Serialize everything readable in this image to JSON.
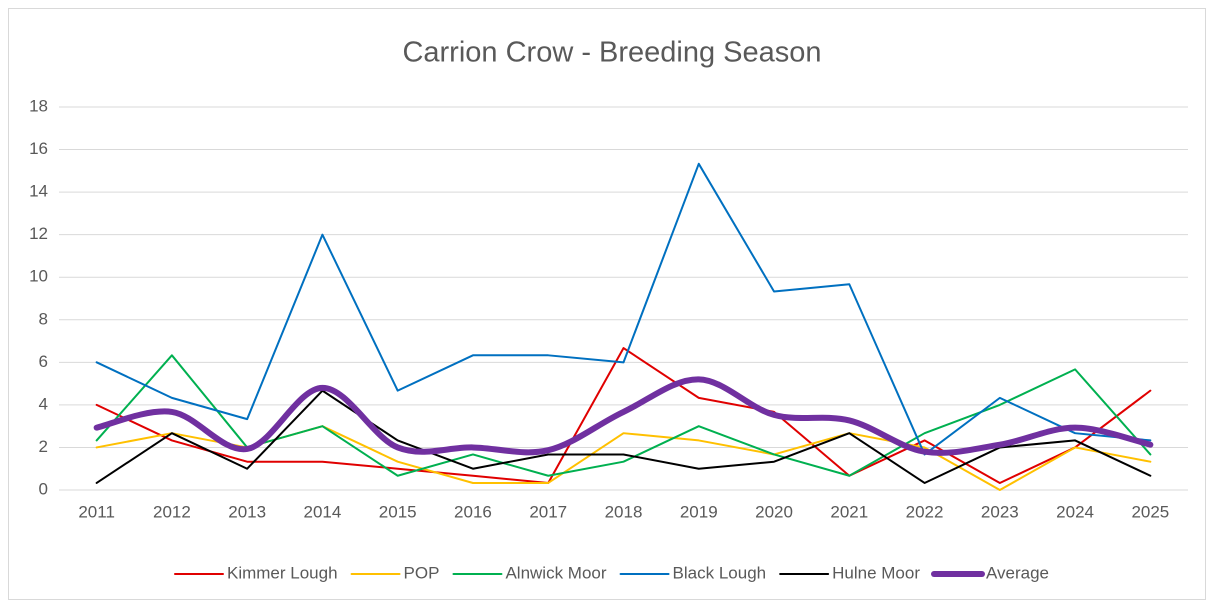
{
  "chart_data": {
    "type": "line",
    "title": "Carrion Crow - Breeding Season",
    "categories": [
      "2011",
      "2012",
      "2013",
      "2014",
      "2015",
      "2016",
      "2017",
      "2018",
      "2019",
      "2020",
      "2021",
      "2022",
      "2023",
      "2024",
      "2025"
    ],
    "ylim": [
      0,
      18
    ],
    "yticks": [
      0,
      2,
      4,
      6,
      8,
      10,
      12,
      14,
      16,
      18
    ],
    "grid": true,
    "legend": "bottom",
    "series": [
      {
        "name": "Kimmer Lough",
        "color": "#e00000",
        "values": [
          4,
          2.33,
          1.33,
          1.33,
          1,
          0.67,
          0.33,
          6.67,
          4.33,
          3.67,
          0.67,
          2.33,
          0.33,
          2,
          4.67
        ]
      },
      {
        "name": "POP",
        "color": "#ffc000",
        "values": [
          2,
          2.67,
          2,
          3,
          1.33,
          0.33,
          0.33,
          2.67,
          2.33,
          1.67,
          2.67,
          2,
          0,
          2,
          1.33
        ]
      },
      {
        "name": "Alnwick Moor",
        "color": "#00b050",
        "values": [
          2.33,
          6.33,
          2,
          3,
          0.67,
          1.67,
          0.67,
          1.33,
          3,
          1.67,
          0.67,
          2.67,
          4,
          5.67,
          1.67
        ]
      },
      {
        "name": "Black Lough",
        "color": "#0070c0",
        "values": [
          6,
          4.33,
          3.33,
          12,
          4.67,
          6.33,
          6.33,
          6,
          15.33,
          9.33,
          9.67,
          1.67,
          4.33,
          2.67,
          2.33
        ]
      },
      {
        "name": "Hulne Moor",
        "color": "#000000",
        "values": [
          0.33,
          2.67,
          1,
          4.67,
          2.33,
          1,
          1.67,
          1.67,
          1,
          1.33,
          2.67,
          0.33,
          2,
          2.33,
          0.67
        ]
      },
      {
        "name": "Average",
        "color": "#7030a0",
        "smooth": true,
        "values": [
          2.93,
          3.67,
          1.93,
          4.8,
          2,
          2,
          1.87,
          3.67,
          5.2,
          3.53,
          3.27,
          1.8,
          2.13,
          2.93,
          2.13
        ]
      }
    ]
  }
}
